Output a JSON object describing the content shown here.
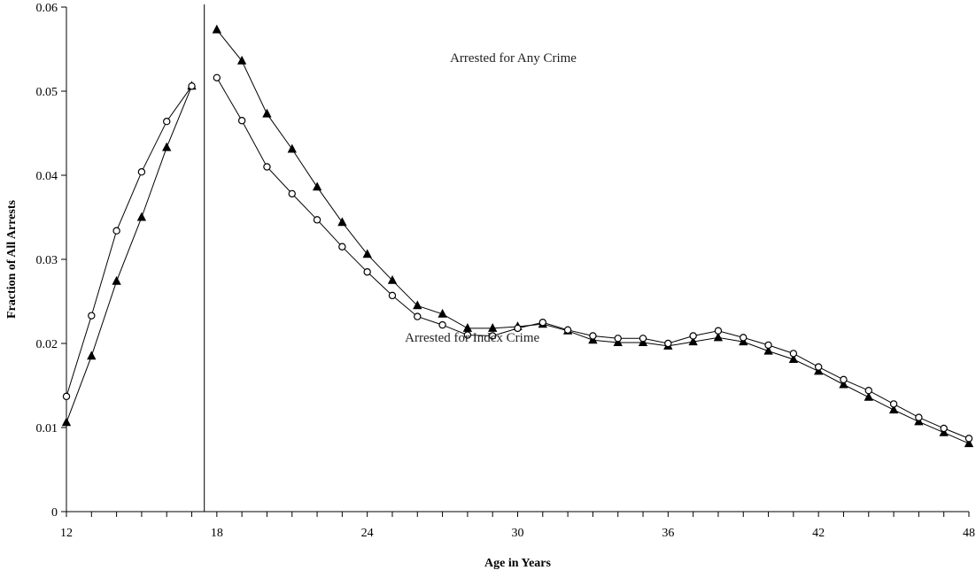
{
  "chart_data": {
    "type": "line",
    "xlabel": "Age in Years",
    "ylabel": "Fraction of All Arrests",
    "xlim": [
      12,
      48
    ],
    "ylim": [
      0,
      0.06
    ],
    "x_ticks": [
      12,
      18,
      24,
      30,
      36,
      42,
      48
    ],
    "y_ticks": [
      0,
      0.01,
      0.02,
      0.03,
      0.04,
      0.05,
      0.06
    ],
    "y_tick_labels": [
      "0",
      "0.01",
      "0.02",
      "0.03",
      "0.04",
      "0.05",
      "0.06"
    ],
    "x_tick_labels": [
      "12",
      "18",
      "24",
      "30",
      "36",
      "42",
      "48"
    ],
    "vertical_reference_line_x": 17.5,
    "grid": false,
    "series": [
      {
        "name": "Arrested for Any Crime",
        "marker": "filled-triangle",
        "segments": [
          {
            "x": [
              12,
              13,
              14,
              15,
              16,
              17
            ],
            "y": [
              0.0106,
              0.0185,
              0.0274,
              0.035,
              0.0433,
              0.0506
            ]
          },
          {
            "x": [
              18,
              19,
              20,
              21,
              22,
              23,
              24,
              25,
              26,
              27,
              28,
              29,
              30,
              31,
              32,
              33,
              34,
              35,
              36,
              37,
              38,
              39,
              40,
              41,
              42,
              43,
              44,
              45,
              46,
              47,
              48
            ],
            "y": [
              0.0573,
              0.0536,
              0.0473,
              0.0431,
              0.0386,
              0.0344,
              0.0306,
              0.0275,
              0.0245,
              0.0235,
              0.0218,
              0.0218,
              0.022,
              0.0223,
              0.0215,
              0.0204,
              0.0201,
              0.0201,
              0.0197,
              0.0202,
              0.0207,
              0.0202,
              0.0191,
              0.0181,
              0.0167,
              0.0151,
              0.0136,
              0.0121,
              0.0107,
              0.0094,
              0.0081
            ]
          }
        ]
      },
      {
        "name": "Arrested for Index Crime",
        "marker": "open-circle",
        "segments": [
          {
            "x": [
              12,
              13,
              14,
              15,
              16,
              17
            ],
            "y": [
              0.0137,
              0.0233,
              0.0334,
              0.0404,
              0.0464,
              0.0506
            ]
          },
          {
            "x": [
              18,
              19,
              20,
              21,
              22,
              23,
              24,
              25,
              26,
              27,
              28,
              29,
              30,
              31,
              32,
              33,
              34,
              35,
              36,
              37,
              38,
              39,
              40,
              41,
              42,
              43,
              44,
              45,
              46,
              47,
              48
            ],
            "y": [
              0.0516,
              0.0465,
              0.041,
              0.0378,
              0.0347,
              0.0315,
              0.0285,
              0.0257,
              0.0232,
              0.0222,
              0.021,
              0.0209,
              0.0218,
              0.0225,
              0.0216,
              0.0209,
              0.0206,
              0.0206,
              0.02,
              0.0209,
              0.0215,
              0.0207,
              0.0198,
              0.0188,
              0.0172,
              0.0157,
              0.0144,
              0.0128,
              0.0112,
              0.0099,
              0.0087
            ]
          }
        ]
      }
    ],
    "annotations": [
      {
        "text": "Arrested for Any Crime",
        "x": 27.3,
        "y": 0.0535
      },
      {
        "text": "Arrested for Index Crime",
        "x": 25.5,
        "y": 0.0202
      }
    ]
  }
}
